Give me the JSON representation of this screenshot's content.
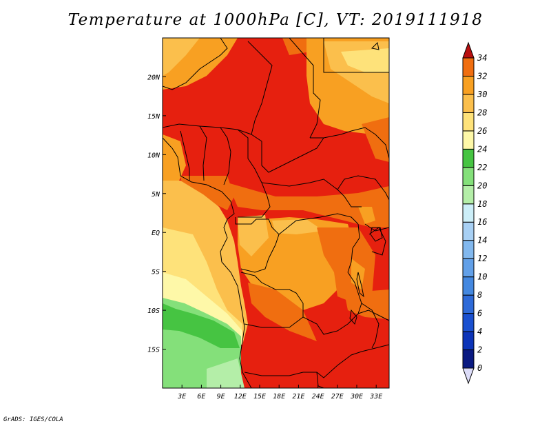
{
  "title": "Temperature at 1000hPa [C], VT: 2019111918",
  "credit": "GrADS: IGES/COLA",
  "map": {
    "projection": "lat-lon",
    "lon_range": [
      0,
      35
    ],
    "lat_range": [
      -20,
      25
    ],
    "lat_ticks": [
      {
        "lat": 20,
        "label": "20N"
      },
      {
        "lat": 15,
        "label": "15N"
      },
      {
        "lat": 10,
        "label": "10N"
      },
      {
        "lat": 5,
        "label": "5N"
      },
      {
        "lat": 0,
        "label": "EQ"
      },
      {
        "lat": -5,
        "label": "5S"
      },
      {
        "lat": -10,
        "label": "10S"
      },
      {
        "lat": -15,
        "label": "15S"
      }
    ],
    "lon_ticks": [
      {
        "lon": 3,
        "label": "3E"
      },
      {
        "lon": 6,
        "label": "6E"
      },
      {
        "lon": 9,
        "label": "9E"
      },
      {
        "lon": 12,
        "label": "12E"
      },
      {
        "lon": 15,
        "label": "15E"
      },
      {
        "lon": 18,
        "label": "18E"
      },
      {
        "lon": 21,
        "label": "21E"
      },
      {
        "lon": 24,
        "label": "24E"
      },
      {
        "lon": 27,
        "label": "27E"
      },
      {
        "lon": 30,
        "label": "30E"
      },
      {
        "lon": 33,
        "label": "33E"
      }
    ],
    "field": "temperature_1000hPa_C",
    "background_color": "#e6200f"
  },
  "colorbar": {
    "orientation": "vertical",
    "labels": [
      "0",
      "2",
      "4",
      "6",
      "8",
      "10",
      "12",
      "14",
      "16",
      "18",
      "20",
      "22",
      "24",
      "26",
      "28",
      "30",
      "32",
      "34"
    ],
    "colors": [
      "#0a1a82",
      "#0c34b8",
      "#1a50d0",
      "#2e6ad8",
      "#4488e0",
      "#62a0e8",
      "#82b8ee",
      "#a8d0f4",
      "#cceef8",
      "#b4eea8",
      "#84e07a",
      "#46c442",
      "#fef8a8",
      "#fee27a",
      "#fbbf4c",
      "#f8a022",
      "#f06e10",
      "#e6200f",
      "#b80f0f"
    ],
    "under_color": "#dcdcf8"
  }
}
